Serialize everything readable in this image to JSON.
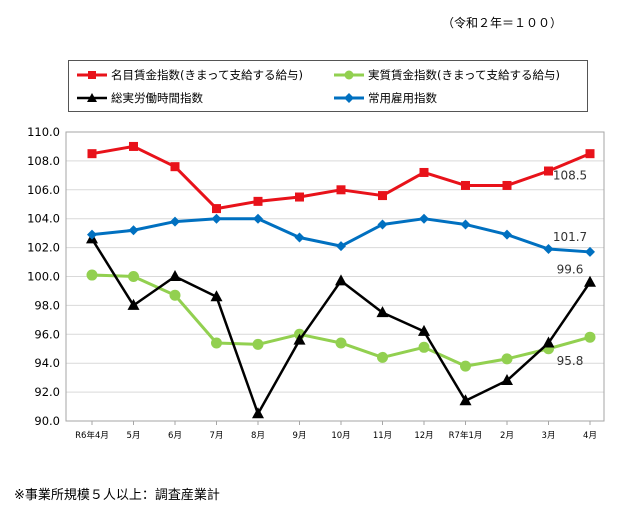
{
  "base_note": "（令和２年＝１００）",
  "footnote": "※事業所規模５人以上：調査産業計",
  "chart_data": {
    "type": "line",
    "categories": [
      "R6年4月",
      "5月",
      "6月",
      "7月",
      "8月",
      "9月",
      "10月",
      "11月",
      "12月",
      "R7年1月",
      "2月",
      "3月",
      "4月"
    ],
    "ylim": [
      90.0,
      110.0
    ],
    "yticks": [
      "90.0",
      "92.0",
      "94.0",
      "96.0",
      "98.0",
      "100.0",
      "102.0",
      "104.0",
      "106.0",
      "108.0",
      "110.0"
    ],
    "grid": true,
    "legend_position": "top",
    "series": [
      {
        "name": "名目賃金指数(きまって支給する給与)",
        "color": "#e8121a",
        "marker": "square",
        "values": [
          108.5,
          109.0,
          107.6,
          104.7,
          105.2,
          105.5,
          106.0,
          105.6,
          107.2,
          106.3,
          106.3,
          107.3,
          108.5
        ],
        "end_label": "108.5"
      },
      {
        "name": "実質賃金指数(きまって支給する給与)",
        "color": "#92d050",
        "marker": "circle",
        "values": [
          100.1,
          100.0,
          98.7,
          95.4,
          95.3,
          96.0,
          95.4,
          94.4,
          95.1,
          93.8,
          94.3,
          95.0,
          95.8
        ],
        "end_label": "95.8"
      },
      {
        "name": "総実労働時間指数",
        "color": "#000000",
        "marker": "triangle",
        "values": [
          102.6,
          98.0,
          100.0,
          98.6,
          90.5,
          95.6,
          99.7,
          97.5,
          96.2,
          91.4,
          92.8,
          95.4,
          99.6
        ],
        "end_label": "99.6"
      },
      {
        "name": "常用雇用指数",
        "color": "#0070c0",
        "marker": "diamond",
        "values": [
          102.9,
          103.2,
          103.8,
          104.0,
          104.0,
          102.7,
          102.1,
          103.6,
          104.0,
          103.6,
          102.9,
          101.9,
          101.7
        ],
        "end_label": "101.7"
      }
    ]
  }
}
